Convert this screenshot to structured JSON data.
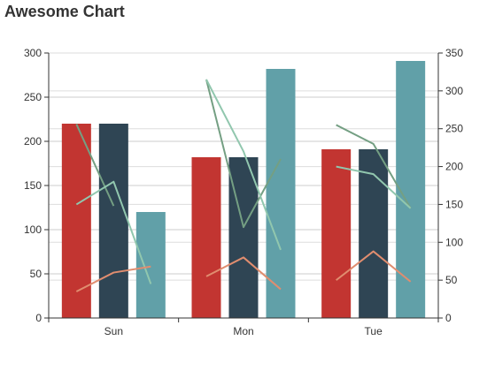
{
  "chart_data": {
    "type": "bar",
    "title": "Awesome Chart",
    "categories": [
      "Sun",
      "Mon",
      "Tue"
    ],
    "y_left": {
      "ticks": [
        "0",
        "50",
        "100",
        "150",
        "200",
        "250",
        "300"
      ],
      "range": [
        0,
        300
      ]
    },
    "y_right": {
      "ticks": [
        "0",
        "50",
        "100",
        "150",
        "200",
        "250",
        "300",
        "350"
      ],
      "range": [
        0,
        350
      ]
    },
    "grid": true,
    "bar_series": [
      {
        "values": [
          220,
          182,
          191
        ],
        "color": "#c23531",
        "axis": "left"
      },
      {
        "values": [
          220,
          182,
          191
        ],
        "color": "#2f4554",
        "axis": "left"
      },
      {
        "values": [
          120,
          282,
          291
        ],
        "color": "#61a0a8",
        "axis": "left"
      }
    ],
    "line_groups": [
      {
        "category": "Sun",
        "lines": [
          {
            "values": [
              256,
              148
            ],
            "color": "#749f83",
            "axis": "right"
          },
          {
            "values": [
              150,
              180,
              45
            ],
            "color": "#91c7ae",
            "axis": "right"
          },
          {
            "values": [
              35,
              60,
              68
            ],
            "color": "#e08d6f",
            "axis": "right"
          }
        ]
      },
      {
        "category": "Mon",
        "lines": [
          {
            "values": [
              315,
              120,
              210
            ],
            "color": "#749f83",
            "axis": "right"
          },
          {
            "values": [
              315,
              220,
              90
            ],
            "color": "#91c7ae",
            "axis": "right"
          },
          {
            "values": [
              55,
              80,
              38
            ],
            "color": "#e08d6f",
            "axis": "right"
          }
        ]
      },
      {
        "category": "Tue",
        "lines": [
          {
            "values": [
              255,
              230,
              145
            ],
            "color": "#749f83",
            "axis": "right"
          },
          {
            "values": [
              200,
              190,
              145
            ],
            "color": "#91c7ae",
            "axis": "right"
          },
          {
            "values": [
              50,
              88,
              48
            ],
            "color": "#e08d6f",
            "axis": "right"
          }
        ]
      }
    ]
  }
}
